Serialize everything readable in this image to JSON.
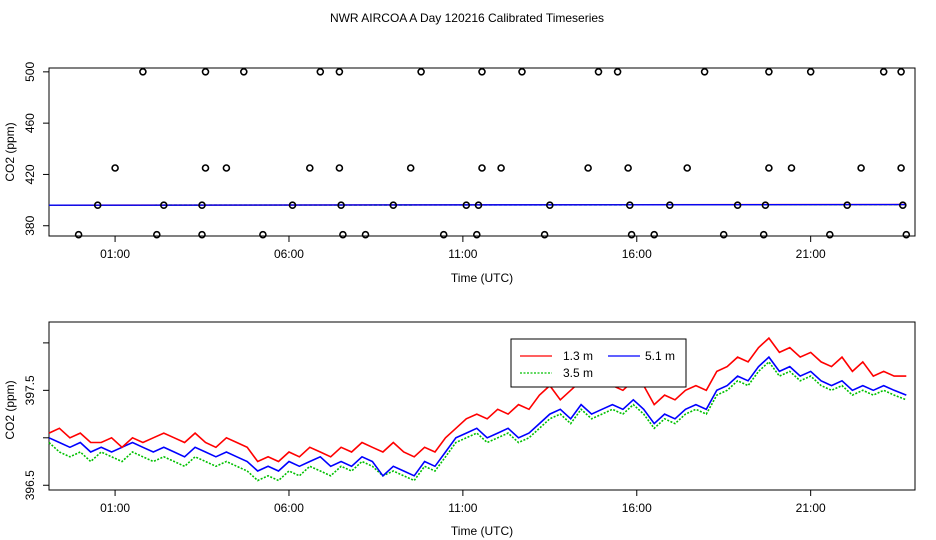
{
  "title": "NWR AIRCOA A  Day 120216  Calibrated Timeseries",
  "chart_data": [
    {
      "type": "scatter",
      "xlabel": "Time (UTC)",
      "ylabel": "CO2 (ppm)",
      "xlim": [
        -0.9,
        24.0
      ],
      "ylim": [
        372.0,
        503.0
      ],
      "x_ticks": [
        1,
        6,
        11,
        16,
        21
      ],
      "x_tick_labels": [
        "01:00",
        "06:00",
        "11:00",
        "16:00",
        "21:00"
      ],
      "y_ticks": [
        380,
        420,
        460,
        500
      ],
      "y_tick_labels": [
        "380",
        "420",
        "460",
        "500"
      ],
      "points": [
        {
          "x": 1.8,
          "y": 500
        },
        {
          "x": 3.6,
          "y": 500
        },
        {
          "x": 4.7,
          "y": 500
        },
        {
          "x": 6.9,
          "y": 500
        },
        {
          "x": 7.45,
          "y": 500
        },
        {
          "x": 9.8,
          "y": 500
        },
        {
          "x": 11.55,
          "y": 500
        },
        {
          "x": 12.7,
          "y": 500
        },
        {
          "x": 14.9,
          "y": 500
        },
        {
          "x": 15.45,
          "y": 500
        },
        {
          "x": 17.95,
          "y": 500
        },
        {
          "x": 19.8,
          "y": 500
        },
        {
          "x": 21.0,
          "y": 500
        },
        {
          "x": 23.1,
          "y": 500
        },
        {
          "x": 23.6,
          "y": 500
        },
        {
          "x": 1.0,
          "y": 425
        },
        {
          "x": 3.6,
          "y": 425
        },
        {
          "x": 4.2,
          "y": 425
        },
        {
          "x": 6.6,
          "y": 425
        },
        {
          "x": 7.45,
          "y": 425
        },
        {
          "x": 9.5,
          "y": 425
        },
        {
          "x": 11.55,
          "y": 425
        },
        {
          "x": 12.1,
          "y": 425
        },
        {
          "x": 14.6,
          "y": 425
        },
        {
          "x": 15.75,
          "y": 425
        },
        {
          "x": 17.45,
          "y": 425
        },
        {
          "x": 19.8,
          "y": 425
        },
        {
          "x": 20.45,
          "y": 425
        },
        {
          "x": 22.45,
          "y": 425
        },
        {
          "x": 23.6,
          "y": 425
        },
        {
          "x": 0.5,
          "y": 396
        },
        {
          "x": 2.4,
          "y": 396
        },
        {
          "x": 3.5,
          "y": 396
        },
        {
          "x": 6.1,
          "y": 396
        },
        {
          "x": 7.5,
          "y": 396
        },
        {
          "x": 9.0,
          "y": 396
        },
        {
          "x": 11.1,
          "y": 396
        },
        {
          "x": 11.45,
          "y": 396
        },
        {
          "x": 13.5,
          "y": 396
        },
        {
          "x": 15.8,
          "y": 396
        },
        {
          "x": 16.95,
          "y": 396
        },
        {
          "x": 18.9,
          "y": 396
        },
        {
          "x": 19.7,
          "y": 396
        },
        {
          "x": 22.05,
          "y": 396
        },
        {
          "x": 23.65,
          "y": 396
        },
        {
          "x": -0.05,
          "y": 373
        },
        {
          "x": 2.2,
          "y": 373
        },
        {
          "x": 3.5,
          "y": 373
        },
        {
          "x": 5.25,
          "y": 373
        },
        {
          "x": 7.55,
          "y": 373
        },
        {
          "x": 8.2,
          "y": 373
        },
        {
          "x": 10.45,
          "y": 373
        },
        {
          "x": 11.4,
          "y": 373
        },
        {
          "x": 13.35,
          "y": 373
        },
        {
          "x": 15.85,
          "y": 373
        },
        {
          "x": 16.5,
          "y": 373
        },
        {
          "x": 18.5,
          "y": 373
        },
        {
          "x": 19.65,
          "y": 373
        },
        {
          "x": 21.55,
          "y": 373
        },
        {
          "x": 23.75,
          "y": 373
        }
      ],
      "series": [
        {
          "color": "#ff0000",
          "x": [
            -0.9,
            23.75
          ],
          "values": [
            396.0,
            396.6
          ]
        },
        {
          "color": "#00c000",
          "x": [
            -0.9,
            23.75
          ],
          "values": [
            396.0,
            396.4
          ]
        },
        {
          "color": "#0000ff",
          "x": [
            -0.9,
            23.75
          ],
          "values": [
            396.0,
            396.5
          ]
        }
      ]
    },
    {
      "type": "line",
      "xlabel": "Time (UTC)",
      "ylabel": "CO2 (ppm)",
      "xlim": [
        -0.9,
        24.0
      ],
      "ylim": [
        396.45,
        398.22
      ],
      "x_ticks": [
        1,
        6,
        11,
        16,
        21
      ],
      "x_tick_labels": [
        "01:00",
        "06:00",
        "11:00",
        "16:00",
        "21:00"
      ],
      "y_ticks": [
        396.5,
        397.0,
        397.5,
        398.0
      ],
      "y_tick_labels": [
        "396.5",
        "",
        "397.5",
        ""
      ],
      "legend": {
        "position": "top-right",
        "entries": [
          "1.3 m",
          "5.1 m",
          "3.5 m"
        ]
      },
      "x": [
        -0.9,
        -0.6,
        -0.3,
        0.0,
        0.3,
        0.6,
        0.9,
        1.2,
        1.5,
        1.8,
        2.1,
        2.4,
        2.7,
        3.0,
        3.3,
        3.6,
        3.9,
        4.2,
        4.5,
        4.8,
        5.1,
        5.4,
        5.7,
        6.0,
        6.3,
        6.6,
        6.9,
        7.2,
        7.5,
        7.8,
        8.1,
        8.4,
        8.7,
        9.0,
        9.3,
        9.6,
        9.9,
        10.2,
        10.5,
        10.8,
        11.1,
        11.4,
        11.7,
        12.0,
        12.3,
        12.6,
        12.9,
        13.2,
        13.5,
        13.8,
        14.1,
        14.4,
        14.7,
        15.0,
        15.3,
        15.6,
        15.9,
        16.2,
        16.5,
        16.8,
        17.1,
        17.4,
        17.7,
        18.0,
        18.3,
        18.6,
        18.9,
        19.2,
        19.5,
        19.8,
        20.1,
        20.4,
        20.7,
        21.0,
        21.3,
        21.6,
        21.9,
        22.2,
        22.5,
        22.8,
        23.1,
        23.4,
        23.75
      ],
      "series": [
        {
          "name": "1.3 m",
          "color": "#ff0000",
          "values": [
            397.05,
            397.1,
            397.0,
            397.05,
            396.95,
            396.95,
            397.0,
            396.9,
            397.0,
            396.95,
            397.0,
            397.05,
            397.0,
            396.95,
            397.05,
            396.95,
            396.9,
            397.0,
            396.95,
            396.9,
            396.75,
            396.8,
            396.75,
            396.85,
            396.8,
            396.9,
            396.85,
            396.8,
            396.9,
            396.85,
            396.95,
            396.9,
            396.85,
            396.95,
            396.85,
            396.8,
            396.9,
            396.85,
            397.0,
            397.1,
            397.2,
            397.25,
            397.2,
            397.3,
            397.25,
            397.35,
            397.3,
            397.45,
            397.55,
            397.4,
            397.5,
            397.6,
            397.55,
            397.65,
            397.55,
            397.5,
            397.6,
            397.55,
            397.35,
            397.45,
            397.4,
            397.5,
            397.55,
            397.5,
            397.7,
            397.75,
            397.85,
            397.8,
            397.95,
            398.05,
            397.9,
            397.95,
            397.85,
            397.9,
            397.8,
            397.75,
            397.85,
            397.7,
            397.8,
            397.65,
            397.7,
            397.65,
            397.65
          ]
        },
        {
          "name": "5.1 m",
          "color": "#0000ff",
          "values": [
            397.0,
            396.95,
            396.9,
            396.95,
            396.85,
            396.9,
            396.85,
            396.9,
            396.95,
            396.9,
            396.85,
            396.9,
            396.85,
            396.8,
            396.9,
            396.85,
            396.8,
            396.85,
            396.8,
            396.75,
            396.65,
            396.7,
            396.65,
            396.75,
            396.7,
            396.75,
            396.8,
            396.7,
            396.75,
            396.7,
            396.8,
            396.75,
            396.6,
            396.7,
            396.65,
            396.6,
            396.75,
            396.7,
            396.85,
            397.0,
            397.05,
            397.1,
            397.0,
            397.05,
            397.1,
            397.0,
            397.05,
            397.15,
            397.25,
            397.3,
            397.2,
            397.35,
            397.25,
            397.3,
            397.35,
            397.3,
            397.4,
            397.3,
            397.15,
            397.25,
            397.2,
            397.3,
            397.35,
            397.3,
            397.5,
            397.55,
            397.65,
            397.6,
            397.75,
            397.85,
            397.7,
            397.75,
            397.65,
            397.7,
            397.6,
            397.55,
            397.6,
            397.5,
            397.55,
            397.5,
            397.55,
            397.5,
            397.45
          ]
        },
        {
          "name": "3.5 m",
          "color": "#00c000",
          "values": [
            396.95,
            396.85,
            396.8,
            396.85,
            396.75,
            396.85,
            396.8,
            396.75,
            396.85,
            396.8,
            396.75,
            396.8,
            396.75,
            396.7,
            396.8,
            396.75,
            396.7,
            396.75,
            396.7,
            396.65,
            396.55,
            396.6,
            396.55,
            396.65,
            396.6,
            396.7,
            396.65,
            396.6,
            396.7,
            396.65,
            396.75,
            396.7,
            396.6,
            396.65,
            396.6,
            396.55,
            396.7,
            396.65,
            396.8,
            396.95,
            397.0,
            397.05,
            396.95,
            397.0,
            397.05,
            396.95,
            397.0,
            397.1,
            397.2,
            397.25,
            397.15,
            397.3,
            397.2,
            397.25,
            397.3,
            397.25,
            397.35,
            397.25,
            397.1,
            397.2,
            397.15,
            397.25,
            397.3,
            397.25,
            397.45,
            397.5,
            397.6,
            397.55,
            397.7,
            397.8,
            397.65,
            397.7,
            397.6,
            397.65,
            397.55,
            397.5,
            397.55,
            397.45,
            397.5,
            397.45,
            397.5,
            397.45,
            397.4
          ]
        }
      ]
    }
  ]
}
